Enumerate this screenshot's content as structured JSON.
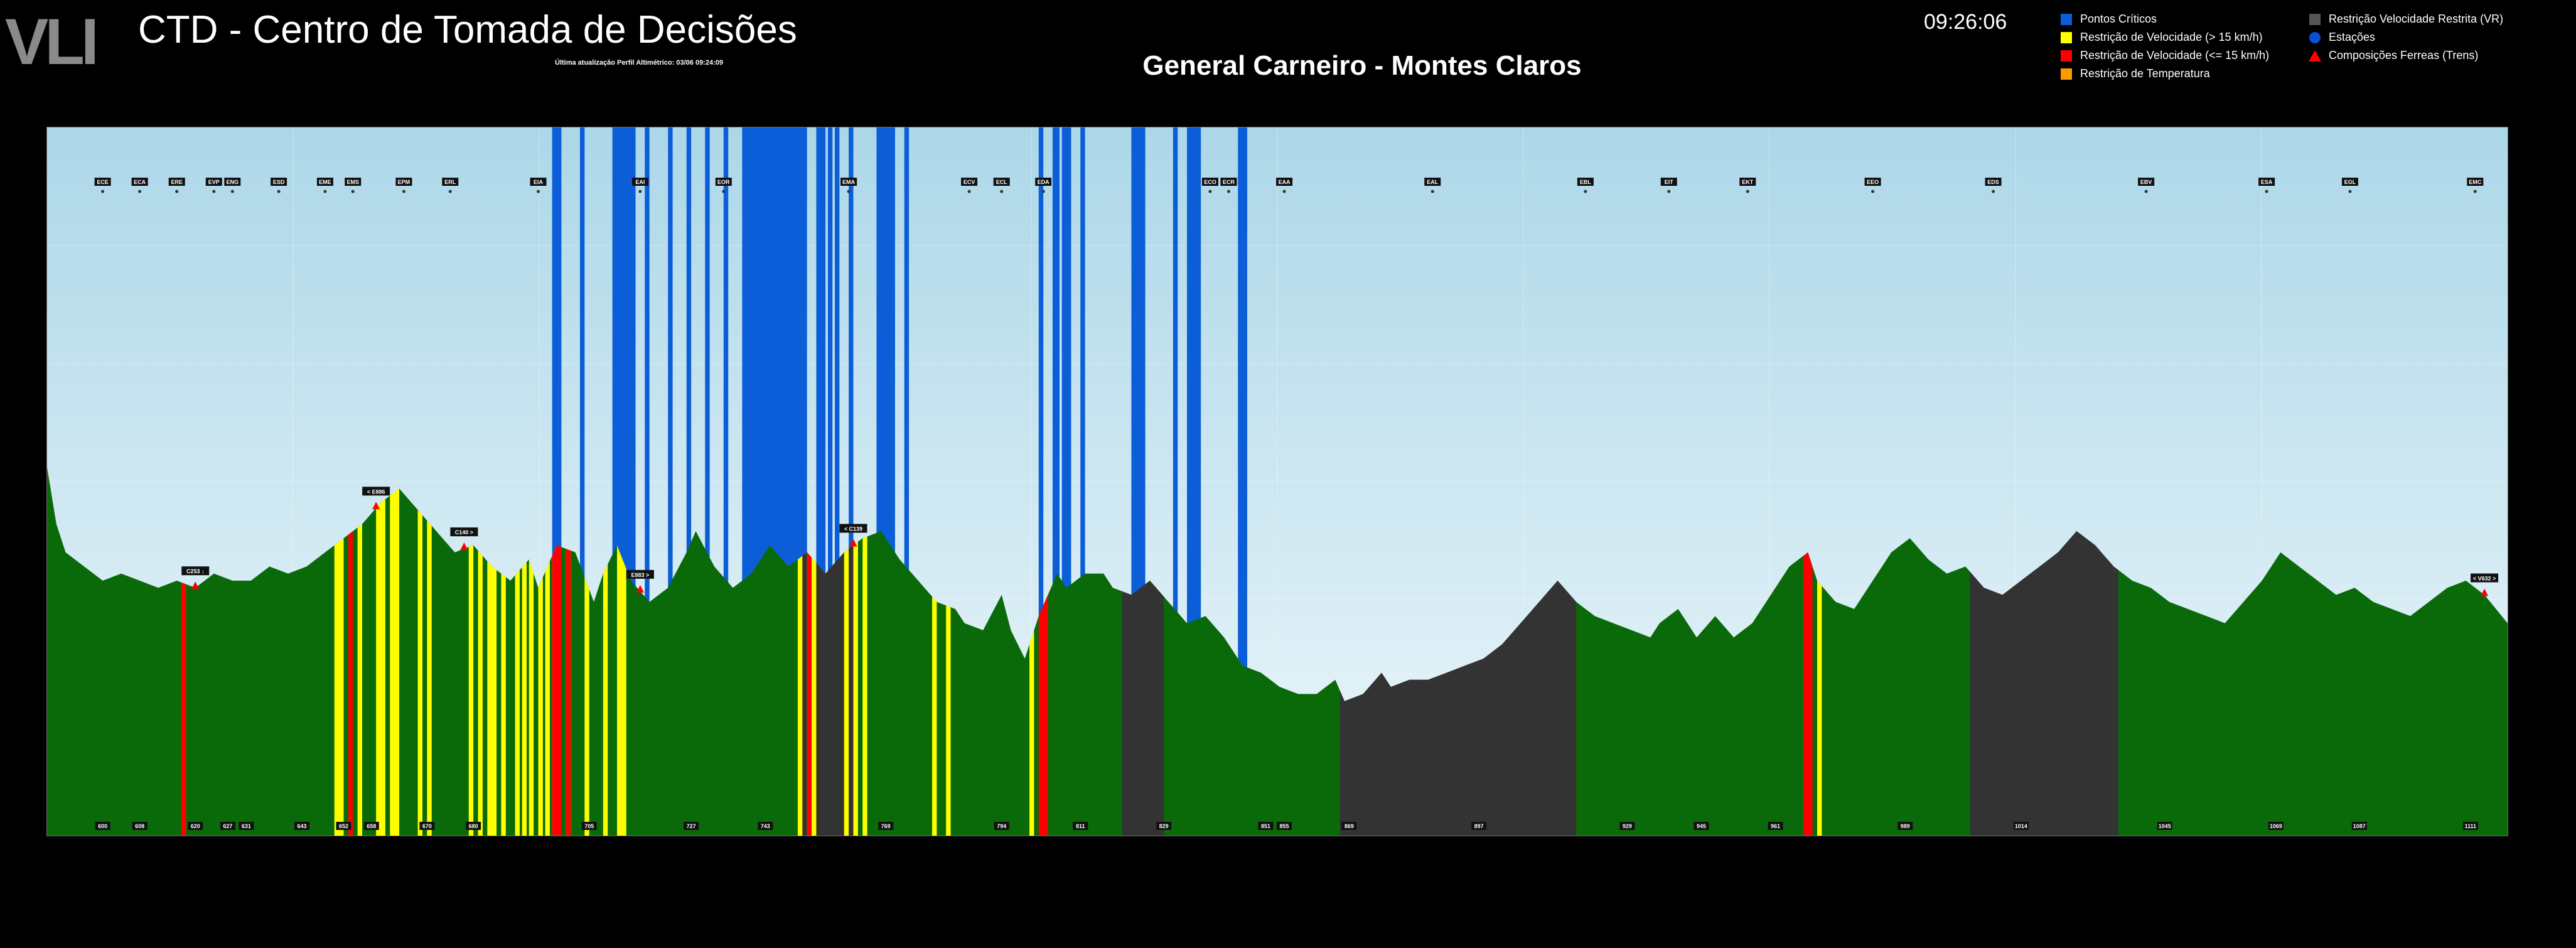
{
  "header": {
    "logo_text": "VLI",
    "title": "CTD - Centro de Tomada de Decisões",
    "last_update": "Última atualização Perfil Altimétrico: 03/06 09:24:09",
    "route": "General Carneiro - Montes Claros",
    "clock": "09:26:06"
  },
  "legend": {
    "col1": [
      {
        "label": "Pontos Críticos",
        "color": "#0b5ed7",
        "icon": "square-icon"
      },
      {
        "label": "Restrição de Velocidade (> 15 km/h)",
        "color": "#ffff00",
        "icon": "square-icon"
      },
      {
        "label": "Restrição de Velocidade (<= 15 km/h)",
        "color": "#ff0000",
        "icon": "square-icon"
      },
      {
        "label": "Restrição de Temperatura",
        "color": "#ff9900",
        "icon": "square-icon"
      }
    ],
    "col2": [
      {
        "label": "Restrição Velocidade Restrita (VR)",
        "color": "#555555",
        "icon": "square-icon"
      },
      {
        "label": "Estações",
        "color": "#0b4fd8",
        "icon": "circle-icon"
      },
      {
        "label": "Composições Ferreas (Trens)",
        "color": "#ff0000",
        "icon": "triangle-icon"
      }
    ]
  },
  "colors": {
    "terrain": "#0a6a0a",
    "restricted_zone": "#333333",
    "critical": "#0b5ed7",
    "speed_high": "#ffff00",
    "speed_low": "#ff0000",
    "sky_top": "#acd7e8",
    "sky_bottom": "#eef7fb"
  },
  "profile": {
    "km_range": [
      588,
      1119
    ],
    "elevation_profile": [
      [
        588,
        0.52
      ],
      [
        590,
        0.44
      ],
      [
        592,
        0.4
      ],
      [
        596,
        0.38
      ],
      [
        600,
        0.36
      ],
      [
        604,
        0.37
      ],
      [
        608,
        0.36
      ],
      [
        612,
        0.35
      ],
      [
        616,
        0.36
      ],
      [
        620,
        0.35
      ],
      [
        624,
        0.37
      ],
      [
        628,
        0.36
      ],
      [
        632,
        0.36
      ],
      [
        636,
        0.38
      ],
      [
        640,
        0.37
      ],
      [
        644,
        0.38
      ],
      [
        648,
        0.4
      ],
      [
        652,
        0.42
      ],
      [
        656,
        0.44
      ],
      [
        660,
        0.47
      ],
      [
        664,
        0.49
      ],
      [
        668,
        0.46
      ],
      [
        672,
        0.43
      ],
      [
        676,
        0.4
      ],
      [
        680,
        0.41
      ],
      [
        684,
        0.38
      ],
      [
        688,
        0.36
      ],
      [
        692,
        0.39
      ],
      [
        694,
        0.35
      ],
      [
        698,
        0.41
      ],
      [
        702,
        0.4
      ],
      [
        706,
        0.33
      ],
      [
        708,
        0.37
      ],
      [
        711,
        0.41
      ],
      [
        714,
        0.36
      ],
      [
        718,
        0.33
      ],
      [
        722,
        0.35
      ],
      [
        726,
        0.4
      ],
      [
        728,
        0.43
      ],
      [
        732,
        0.38
      ],
      [
        736,
        0.35
      ],
      [
        740,
        0.37
      ],
      [
        744,
        0.41
      ],
      [
        748,
        0.38
      ],
      [
        752,
        0.4
      ],
      [
        756,
        0.37
      ],
      [
        760,
        0.4
      ],
      [
        764,
        0.42
      ],
      [
        768,
        0.43
      ],
      [
        772,
        0.39
      ],
      [
        776,
        0.36
      ],
      [
        780,
        0.33
      ],
      [
        784,
        0.32
      ],
      [
        786,
        0.3
      ],
      [
        790,
        0.29
      ],
      [
        794,
        0.34
      ],
      [
        796,
        0.29
      ],
      [
        799,
        0.25
      ],
      [
        802,
        0.31
      ],
      [
        806,
        0.37
      ],
      [
        808,
        0.35
      ],
      [
        812,
        0.37
      ],
      [
        816,
        0.37
      ],
      [
        818,
        0.35
      ],
      [
        822,
        0.34
      ],
      [
        826,
        0.36
      ],
      [
        830,
        0.33
      ],
      [
        834,
        0.3
      ],
      [
        838,
        0.31
      ],
      [
        842,
        0.28
      ],
      [
        846,
        0.24
      ],
      [
        850,
        0.23
      ],
      [
        854,
        0.21
      ],
      [
        858,
        0.2
      ],
      [
        862,
        0.2
      ],
      [
        866,
        0.22
      ],
      [
        868,
        0.19
      ],
      [
        872,
        0.2
      ],
      [
        876,
        0.23
      ],
      [
        878,
        0.21
      ],
      [
        882,
        0.22
      ],
      [
        886,
        0.22
      ],
      [
        890,
        0.23
      ],
      [
        894,
        0.24
      ],
      [
        898,
        0.25
      ],
      [
        902,
        0.27
      ],
      [
        906,
        0.3
      ],
      [
        910,
        0.33
      ],
      [
        914,
        0.36
      ],
      [
        918,
        0.33
      ],
      [
        922,
        0.31
      ],
      [
        926,
        0.3
      ],
      [
        930,
        0.29
      ],
      [
        934,
        0.28
      ],
      [
        936,
        0.3
      ],
      [
        940,
        0.32
      ],
      [
        944,
        0.28
      ],
      [
        948,
        0.31
      ],
      [
        952,
        0.28
      ],
      [
        956,
        0.3
      ],
      [
        960,
        0.34
      ],
      [
        964,
        0.38
      ],
      [
        968,
        0.4
      ],
      [
        970,
        0.36
      ],
      [
        974,
        0.33
      ],
      [
        978,
        0.32
      ],
      [
        982,
        0.36
      ],
      [
        986,
        0.4
      ],
      [
        990,
        0.42
      ],
      [
        994,
        0.39
      ],
      [
        998,
        0.37
      ],
      [
        1002,
        0.38
      ],
      [
        1006,
        0.35
      ],
      [
        1010,
        0.34
      ],
      [
        1014,
        0.36
      ],
      [
        1018,
        0.38
      ],
      [
        1022,
        0.4
      ],
      [
        1026,
        0.43
      ],
      [
        1030,
        0.41
      ],
      [
        1034,
        0.38
      ],
      [
        1038,
        0.36
      ],
      [
        1042,
        0.35
      ],
      [
        1046,
        0.33
      ],
      [
        1050,
        0.32
      ],
      [
        1054,
        0.31
      ],
      [
        1058,
        0.3
      ],
      [
        1062,
        0.33
      ],
      [
        1066,
        0.36
      ],
      [
        1070,
        0.4
      ],
      [
        1074,
        0.38
      ],
      [
        1078,
        0.36
      ],
      [
        1082,
        0.34
      ],
      [
        1086,
        0.35
      ],
      [
        1090,
        0.33
      ],
      [
        1094,
        0.32
      ],
      [
        1098,
        0.31
      ],
      [
        1102,
        0.33
      ],
      [
        1106,
        0.35
      ],
      [
        1110,
        0.36
      ],
      [
        1114,
        0.34
      ],
      [
        1119,
        0.3
      ]
    ],
    "restricted_zones": [
      [
        750,
        762
      ],
      [
        820,
        829
      ],
      [
        867,
        918
      ],
      [
        1003,
        1035
      ]
    ],
    "critical_points": [
      [
        697,
        699
      ],
      [
        703,
        704
      ],
      [
        710,
        715
      ],
      [
        717,
        718
      ],
      [
        722,
        723
      ],
      [
        726,
        727
      ],
      [
        730,
        731
      ],
      [
        734,
        735
      ],
      [
        738,
        752
      ],
      [
        754,
        756
      ],
      [
        756.5,
        757.5
      ],
      [
        758,
        759
      ],
      [
        761,
        762
      ],
      [
        767,
        771
      ],
      [
        773,
        774
      ],
      [
        802,
        803
      ],
      [
        805,
        806.5
      ],
      [
        807,
        809
      ],
      [
        811,
        812
      ],
      [
        822,
        825
      ],
      [
        831,
        832
      ],
      [
        834,
        837
      ],
      [
        845,
        847
      ]
    ],
    "speed_high_zones": [
      [
        650,
        652
      ],
      [
        655,
        656
      ],
      [
        659,
        661
      ],
      [
        662,
        664
      ],
      [
        668,
        669
      ],
      [
        670,
        671
      ],
      [
        679,
        680
      ],
      [
        681,
        682
      ],
      [
        683,
        685
      ],
      [
        686,
        687
      ],
      [
        689,
        690
      ],
      [
        690.5,
        691.5
      ],
      [
        692,
        693
      ],
      [
        694,
        695
      ],
      [
        695.5,
        696.5
      ],
      [
        697,
        698
      ],
      [
        700,
        701
      ],
      [
        704,
        705
      ],
      [
        708,
        709
      ],
      [
        711,
        713
      ],
      [
        750,
        751
      ],
      [
        752,
        754
      ],
      [
        760,
        761
      ],
      [
        762,
        763
      ],
      [
        764,
        765
      ],
      [
        779,
        780
      ],
      [
        782,
        783
      ],
      [
        800,
        801
      ],
      [
        970,
        971
      ]
    ],
    "speed_low_zones": [
      [
        617,
        618
      ],
      [
        653,
        654
      ],
      [
        697,
        699
      ],
      [
        700,
        701
      ],
      [
        752,
        753
      ],
      [
        802,
        804
      ],
      [
        967,
        969
      ]
    ],
    "stations": [
      "ECE",
      "ECA",
      "ERE",
      "EVP",
      "ENG",
      "ESD",
      "EME",
      "EMS",
      "EPM",
      "ERL",
      "EIA",
      "EAI",
      "EOR",
      "EMA",
      "ECV",
      "ECL",
      "EDA",
      "ECO",
      "ECR",
      "EAA",
      "EAL",
      "EBL",
      "EIT",
      "EKT",
      "EEO",
      "EDS",
      "EBV",
      "ESA",
      "EGL",
      "EMC"
    ],
    "station_km": [
      600,
      608,
      616,
      624,
      628,
      638,
      648,
      654,
      665,
      675,
      694,
      716,
      734,
      761,
      787,
      794,
      803,
      839,
      843,
      855,
      887,
      920,
      938,
      955,
      982,
      1008,
      1041,
      1067,
      1085,
      1112
    ],
    "km_markers": [
      "600",
      "608",
      "620",
      "627",
      "631",
      "643",
      "652",
      "658",
      "670",
      "680",
      "705",
      "727",
      "743",
      "769",
      "794",
      "811",
      "829",
      "851",
      "855",
      "869",
      "897",
      "929",
      "945",
      "961",
      "989",
      "1014",
      "1045",
      "1069",
      "1087",
      "1111"
    ],
    "km_marker_pos": [
      600,
      608,
      620,
      627,
      631,
      643,
      652,
      658,
      670,
      680,
      705,
      727,
      743,
      769,
      794,
      811,
      829,
      851,
      855,
      869,
      897,
      929,
      945,
      961,
      989,
      1014,
      1045,
      1069,
      1087,
      1111
    ],
    "trains": [
      {
        "label": "C253 ↓",
        "km": 620
      },
      {
        "label": "< E886",
        "km": 659
      },
      {
        "label": "C140 >",
        "km": 678
      },
      {
        "label": "E883 >",
        "km": 716
      },
      {
        "label": "< C139",
        "km": 762
      },
      {
        "label": "< V632 >",
        "km": 1114
      }
    ]
  }
}
